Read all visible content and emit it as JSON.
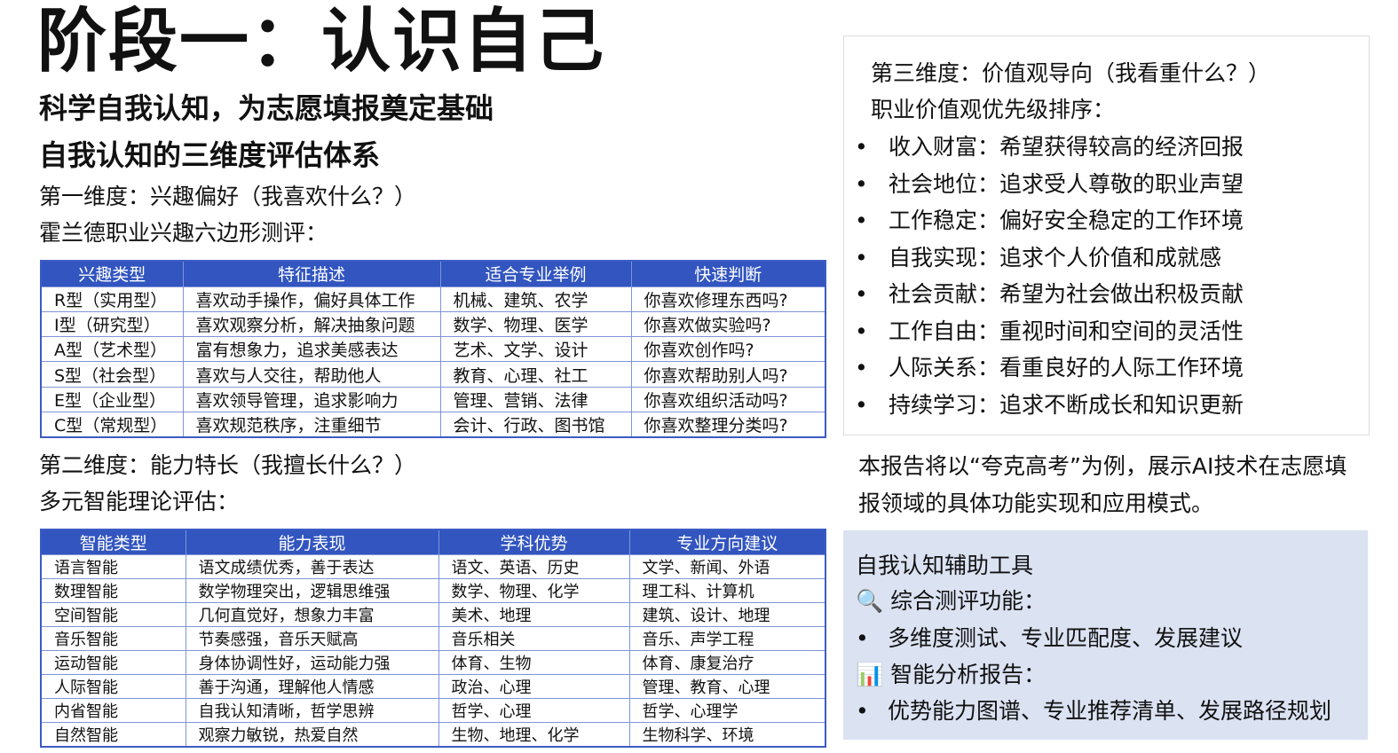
{
  "title": "阶段一：认识自己",
  "subtitle": "科学自我认知，为志愿填报奠定基础",
  "section_heading": "自我认知的三维度评估体系",
  "dim1": {
    "heading": "第一维度：兴趣偏好（我喜欢什么？）",
    "intro": "霍兰德职业兴趣六边形测评：",
    "headers": [
      "兴趣类型",
      "特征描述",
      "适合专业举例",
      "快速判断"
    ],
    "rows": [
      [
        "R型（实用型）",
        "喜欢动手操作，偏好具体工作",
        "机械、建筑、农学",
        "你喜欢修理东西吗?"
      ],
      [
        "I型（研究型）",
        "喜欢观察分析，解决抽象问题",
        "数学、物理、医学",
        "你喜欢做实验吗?"
      ],
      [
        "A型（艺术型）",
        "富有想象力，追求美感表达",
        "艺术、文学、设计",
        "你喜欢创作吗?"
      ],
      [
        "S型（社会型）",
        "喜欢与人交往，帮助他人",
        "教育、心理、社工",
        "你喜欢帮助别人吗?"
      ],
      [
        "E型（企业型）",
        "喜欢领导管理，追求影响力",
        "管理、营销、法律",
        "你喜欢组织活动吗?"
      ],
      [
        "C型（常规型）",
        "喜欢规范秩序，注重细节",
        "会计、行政、图书馆",
        "你喜欢整理分类吗?"
      ]
    ]
  },
  "dim2": {
    "heading": "第二维度：能力特长（我擅长什么？）",
    "intro": "多元智能理论评估：",
    "headers": [
      "智能类型",
      "能力表现",
      "学科优势",
      "专业方向建议"
    ],
    "rows": [
      [
        "语言智能",
        "语文成绩优秀，善于表达",
        "语文、英语、历史",
        "文学、新闻、外语"
      ],
      [
        "数理智能",
        "数学物理突出，逻辑思维强",
        "数学、物理、化学",
        "理工科、计算机"
      ],
      [
        "空间智能",
        "几何直觉好，想象力丰富",
        "美术、地理",
        "建筑、设计、地理"
      ],
      [
        "音乐智能",
        "节奏感强，音乐天赋高",
        "音乐相关",
        "音乐、声学工程"
      ],
      [
        "运动智能",
        "身体协调性好，运动能力强",
        "体育、生物",
        "体育、康复治疗"
      ],
      [
        "人际智能",
        "善于沟通，理解他人情感",
        "政治、心理",
        "管理、教育、心理"
      ],
      [
        "内省智能",
        "自我认知清晰，哲学思辨",
        "哲学、心理",
        "哲学、心理学"
      ],
      [
        "自然智能",
        "观察力敏锐，热爱自然",
        "生物、地理、化学",
        "生物科学、环境"
      ]
    ]
  },
  "dim3": {
    "heading": "第三维度：价值观导向（我看重什么？）",
    "intro": "职业价值观优先级排序：",
    "items": [
      "收入财富：希望获得较高的经济回报",
      "社会地位：追求受人尊敬的职业声望",
      "工作稳定：偏好安全稳定的工作环境",
      "自我实现：追求个人价值和成就感",
      "社会贡献：希望为社会做出积极贡献",
      "工作自由：重视时间和空间的灵活性",
      "人际关系：看重良好的人际工作环境",
      "持续学习：追求不断成长和知识更新"
    ]
  },
  "note": "本报告将以“夸克高考”为例，展示AI技术在志愿填报领域的具体功能实现和应用模式。",
  "tools": {
    "title": "自我认知辅助工具",
    "f1_icon": "magnifier-icon",
    "f1": "综合测评功能：",
    "f1_bullet": "多维度测试、专业匹配度、发展建议",
    "f2_icon": "bar-chart-icon",
    "f2": "智能分析报告：",
    "f2_bullet": "优势能力图谱、专业推荐清单、发展路径规划"
  },
  "colors": {
    "table_header": "#3255c0",
    "tools_bg": "#dbe2f2"
  }
}
